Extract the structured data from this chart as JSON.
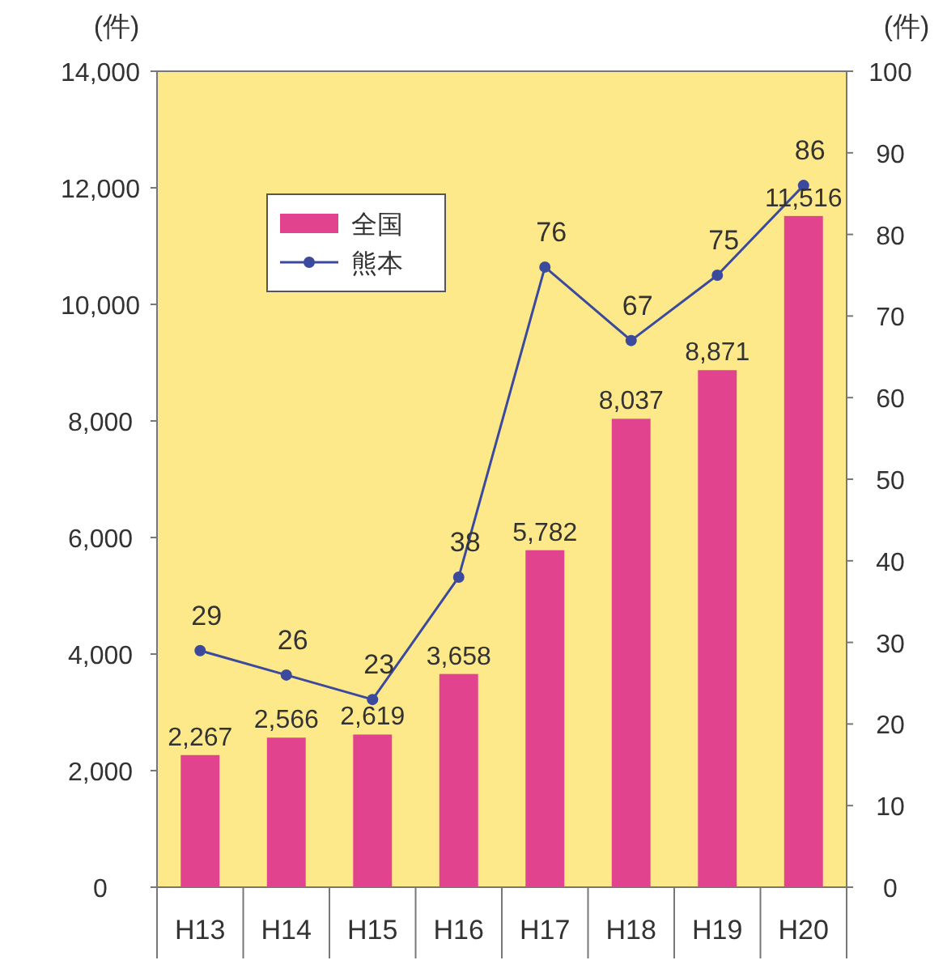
{
  "chart_data": {
    "type": "bar",
    "ylabel": "(件)",
    "y2label": "(件)",
    "categories": [
      "H13",
      "H14",
      "H15",
      "H16",
      "H17",
      "H18",
      "H19",
      "H20"
    ],
    "series": [
      {
        "name": "全国",
        "color": "#e2438e",
        "values": [
          2267,
          2566,
          2619,
          3658,
          5782,
          8037,
          8871,
          11516
        ],
        "value_labels": [
          "2,267",
          "2,566",
          "2,619",
          "3,658",
          "5,782",
          "8,037",
          "8,871",
          "11,516"
        ]
      },
      {
        "name": "熊本",
        "type": "line",
        "axis": "y2",
        "color": "#3b4a9c",
        "marker": "circle",
        "values": [
          29,
          26,
          23,
          38,
          76,
          67,
          75,
          86
        ]
      }
    ],
    "ylim": [
      0,
      14000
    ],
    "yticks": [
      0,
      {
        "value": 2000,
        "label": "2,000"
      },
      {
        "value": 4000,
        "label": "4,000"
      },
      {
        "value": 6000,
        "label": "6,000"
      },
      {
        "value": 8000,
        "label": "8,000"
      },
      {
        "value": 10000,
        "label": "10,000"
      },
      {
        "value": 12000,
        "label": "12,000"
      },
      {
        "value": 14000,
        "label": "14,000"
      }
    ],
    "y2lim": [
      0,
      100
    ],
    "y2ticks": [
      0,
      10,
      20,
      30,
      40,
      50,
      60,
      70,
      80,
      90,
      100
    ],
    "data_labels": true,
    "legend": "top left",
    "grid": false
  }
}
